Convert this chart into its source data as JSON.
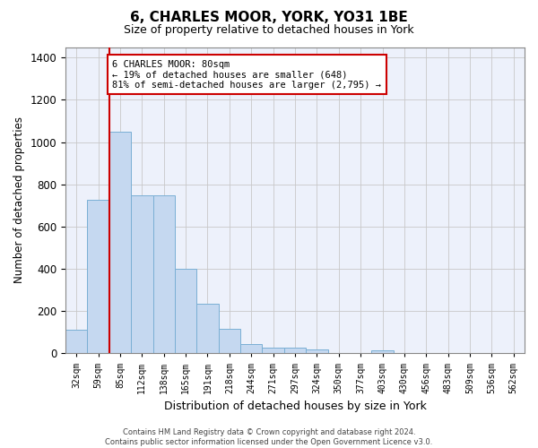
{
  "title": "6, CHARLES MOOR, YORK, YO31 1BE",
  "subtitle": "Size of property relative to detached houses in York",
  "xlabel": "Distribution of detached houses by size in York",
  "ylabel": "Number of detached properties",
  "bar_color": "#c5d8f0",
  "bar_edge_color": "#7aafd4",
  "grid_color": "#c8c8c8",
  "bg_color": "#edf1fb",
  "categories": [
    "32sqm",
    "59sqm",
    "85sqm",
    "112sqm",
    "138sqm",
    "165sqm",
    "191sqm",
    "218sqm",
    "244sqm",
    "271sqm",
    "297sqm",
    "324sqm",
    "350sqm",
    "377sqm",
    "403sqm",
    "430sqm",
    "456sqm",
    "483sqm",
    "509sqm",
    "536sqm",
    "562sqm"
  ],
  "values": [
    110,
    725,
    1050,
    750,
    750,
    400,
    235,
    115,
    45,
    28,
    28,
    20,
    0,
    0,
    15,
    0,
    0,
    0,
    0,
    0,
    0
  ],
  "ylim": [
    0,
    1450
  ],
  "yticks": [
    0,
    200,
    400,
    600,
    800,
    1000,
    1200,
    1400
  ],
  "property_bin_index": 2,
  "annotation_text": "6 CHARLES MOOR: 80sqm\n← 19% of detached houses are smaller (648)\n81% of semi-detached houses are larger (2,795) →",
  "vline_color": "#cc0000",
  "annotation_box_color": "#cc0000",
  "footer_line1": "Contains HM Land Registry data © Crown copyright and database right 2024.",
  "footer_line2": "Contains public sector information licensed under the Open Government Licence v3.0."
}
